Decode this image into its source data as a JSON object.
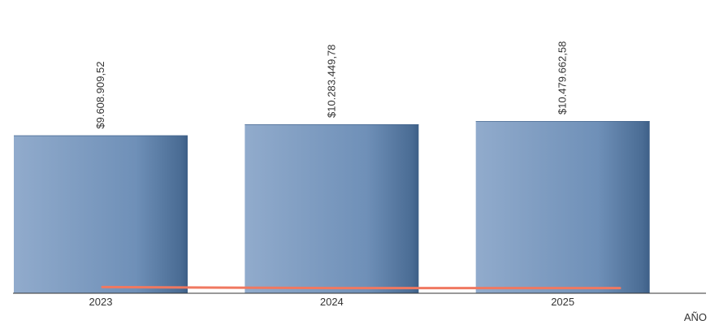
{
  "chart_data": {
    "type": "bar",
    "categories": [
      "2023",
      "2024",
      "2025"
    ],
    "series": [
      {
        "type": "bar",
        "values": [
          9608909.52,
          10283449.78,
          10479662.58
        ],
        "labels": [
          "$9.608.909,52",
          "$10.283.449,78",
          "$10.479.662,58"
        ],
        "color": "#5a7fa8"
      },
      {
        "type": "line",
        "values": [
          0.6,
          0.4,
          0.4
        ],
        "color": "#f07860"
      }
    ],
    "title": "",
    "xlabel": "AÑO",
    "ylabel": "",
    "ylim": [
      0,
      10479662.58
    ],
    "grid": false,
    "legend": "none"
  },
  "colors": {
    "bar_light": "#91abcc",
    "bar_mid": "#6f90b8",
    "bar_dark": "#3d5f87",
    "line": "#f07860",
    "axis": "#333333"
  }
}
